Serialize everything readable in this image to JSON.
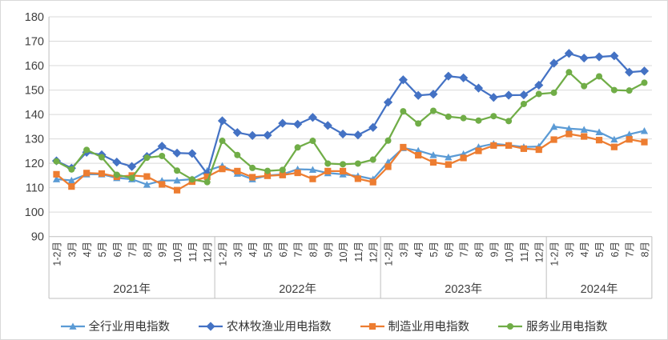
{
  "chart_data": {
    "type": "line",
    "title": "",
    "grid": true,
    "legend_position": "bottom",
    "y_axis": {
      "min": 90,
      "max": 180,
      "step": 10,
      "ticks": [
        90,
        100,
        110,
        120,
        130,
        140,
        150,
        160,
        170,
        180
      ]
    },
    "x_axis": {
      "groups": [
        {
          "label": "2021年",
          "months": [
            "1-2月",
            "3月",
            "4月",
            "5月",
            "6月",
            "7月",
            "8月",
            "9月",
            "10月",
            "11月",
            "12月"
          ]
        },
        {
          "label": "2022年",
          "months": [
            "1-2月",
            "3月",
            "4月",
            "5月",
            "6月",
            "7月",
            "8月",
            "9月",
            "10月",
            "11月",
            "12月"
          ]
        },
        {
          "label": "2023年",
          "months": [
            "1-2月",
            "3月",
            "4月",
            "5月",
            "6月",
            "7月",
            "8月",
            "9月",
            "10月",
            "11月",
            "12月"
          ]
        },
        {
          "label": "2024年",
          "months": [
            "1-2月",
            "3月",
            "4月",
            "5月",
            "6月",
            "7月",
            "8月"
          ]
        }
      ]
    },
    "series": [
      {
        "name": "全行业用电指数",
        "color": "#5B9BD5",
        "marker": "triangle",
        "values": [
          113.5,
          113.0,
          115.5,
          115.5,
          114.0,
          113.5,
          111.3,
          112.9,
          113.0,
          113.5,
          117.0,
          119.0,
          115.8,
          113.5,
          115.0,
          115.5,
          117.6,
          117.4,
          116.0,
          115.5,
          114.8,
          113.5,
          120.5,
          126.3,
          125.2,
          123.4,
          122.5,
          123.8,
          126.7,
          128.0,
          127.4,
          126.7,
          126.9,
          135.0,
          134.2,
          133.8,
          132.8,
          129.8,
          131.9,
          133.3
        ]
      },
      {
        "name": "农林牧渔业用电指数",
        "color": "#4472C4",
        "marker": "diamond",
        "values": [
          121.0,
          118.0,
          124.5,
          123.5,
          120.5,
          118.7,
          122.8,
          127.0,
          124.2,
          124.0,
          115.7,
          137.4,
          132.6,
          131.4,
          131.5,
          136.4,
          136.0,
          138.8,
          135.5,
          132.0,
          131.6,
          134.7,
          145.0,
          154.2,
          147.8,
          148.3,
          155.7,
          155.0,
          150.8,
          147.0,
          147.9,
          148.0,
          152.0,
          161.0,
          165.0,
          163.1,
          163.6,
          164.0,
          157.3,
          157.8
        ]
      },
      {
        "name": "制造业用电指数",
        "color": "#ED7D31",
        "marker": "square",
        "values": [
          115.5,
          110.5,
          116.0,
          115.8,
          114.5,
          115.0,
          114.6,
          111.4,
          109.0,
          112.5,
          114.5,
          117.7,
          116.8,
          114.3,
          114.9,
          115.2,
          116.1,
          113.6,
          116.8,
          116.8,
          113.7,
          112.3,
          118.6,
          126.6,
          123.3,
          120.4,
          119.5,
          122.2,
          125.1,
          127.3,
          127.3,
          126.0,
          125.6,
          129.7,
          132.0,
          131.0,
          129.5,
          126.7,
          129.8,
          128.7
        ]
      },
      {
        "name": "服务业用电指数",
        "color": "#70AD47",
        "marker": "circle",
        "values": [
          120.8,
          117.5,
          125.5,
          122.5,
          115.3,
          114.0,
          122.3,
          123.0,
          117.0,
          113.4,
          112.3,
          129.2,
          123.4,
          118.1,
          116.9,
          117.3,
          126.5,
          129.2,
          119.9,
          119.6,
          119.9,
          121.5,
          129.3,
          141.3,
          136.3,
          141.5,
          139.1,
          138.5,
          137.5,
          139.3,
          137.3,
          144.3,
          148.4,
          148.9,
          157.3,
          151.6,
          155.6,
          150.0,
          149.8,
          153.0
        ]
      }
    ],
    "colors": {
      "gridline": "#D9D9D9",
      "axis_line": "#BFBFBF",
      "tick_text": "#404040"
    }
  }
}
